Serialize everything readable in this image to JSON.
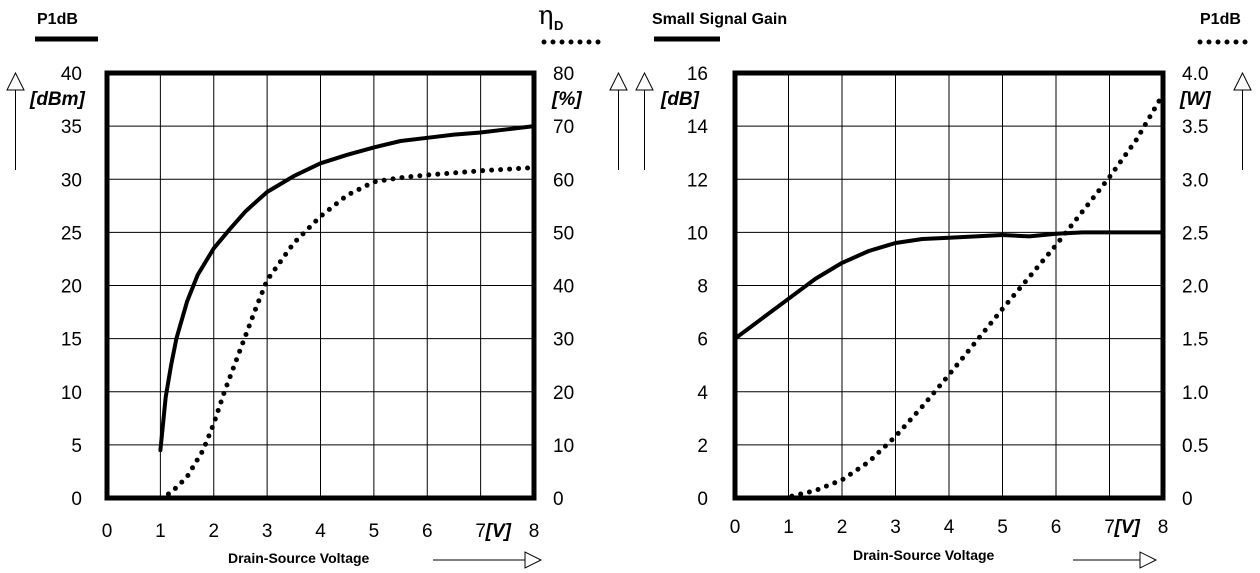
{
  "charts": [
    {
      "legend_left_title": "P1dB",
      "legend_right_symbol": "η",
      "legend_right_sub": "D",
      "left_unit": "[dBm]",
      "right_unit": "[%]",
      "x_unit": "[V]",
      "xlabel": "Drain-Source Voltage",
      "x_ticks": [
        "0",
        "1",
        "2",
        "3",
        "4",
        "5",
        "6",
        "7",
        "8"
      ],
      "y_left_ticks": [
        "0",
        "5",
        "10",
        "15",
        "20",
        "25",
        "30",
        "35",
        "40"
      ],
      "y_right_ticks": [
        "0",
        "10",
        "20",
        "30",
        "40",
        "50",
        "60",
        "70",
        "80"
      ]
    },
    {
      "legend_left_title": "Small Signal Gain",
      "legend_right_title": "P1dB",
      "left_unit": "[dB]",
      "right_unit": "[W]",
      "x_unit": "[V]",
      "xlabel": "Drain-Source Voltage",
      "x_ticks": [
        "0",
        "1",
        "2",
        "3",
        "4",
        "5",
        "6",
        "7",
        "8"
      ],
      "y_left_ticks": [
        "0",
        "2",
        "4",
        "6",
        "8",
        "10",
        "12",
        "14",
        "16"
      ],
      "y_right_ticks": [
        "0",
        "0.5",
        "1.0",
        "1.5",
        "2.0",
        "2.5",
        "3.0",
        "3.5",
        "4.0"
      ]
    }
  ],
  "chart_data": [
    {
      "type": "line",
      "xlim": [
        0,
        8
      ],
      "ylim_left": [
        0,
        40
      ],
      "ylim_right": [
        0,
        80
      ],
      "grid": true,
      "series": [
        {
          "name": "P1dB",
          "axis": "left",
          "style": "solid",
          "x": [
            1.0,
            1.1,
            1.2,
            1.3,
            1.5,
            1.7,
            2.0,
            2.3,
            2.6,
            3.0,
            3.5,
            4.0,
            4.5,
            5.0,
            5.5,
            6.0,
            6.5,
            7.0,
            7.5,
            8.0
          ],
          "y": [
            4.5,
            9.5,
            12.5,
            15.0,
            18.5,
            21.0,
            23.5,
            25.3,
            27.0,
            28.8,
            30.3,
            31.5,
            32.3,
            33.0,
            33.6,
            33.9,
            34.2,
            34.4,
            34.7,
            35.0
          ]
        },
        {
          "name": "η D",
          "axis": "right",
          "style": "dotted",
          "x": [
            1.0,
            1.2,
            1.5,
            1.8,
            2.0,
            2.2,
            2.5,
            2.8,
            3.0,
            3.5,
            4.0,
            4.5,
            5.0,
            5.5,
            6.0,
            6.5,
            7.0,
            7.5,
            8.0
          ],
          "y": [
            0,
            1,
            4,
            9,
            14,
            20,
            28,
            36,
            41,
            48,
            53,
            57,
            59.5,
            60.3,
            60.8,
            61.2,
            61.6,
            61.9,
            62.2
          ]
        }
      ]
    },
    {
      "type": "line",
      "xlim": [
        0,
        8
      ],
      "ylim_left": [
        0,
        16
      ],
      "ylim_right": [
        0,
        4.0
      ],
      "grid": true,
      "series": [
        {
          "name": "Small Signal Gain",
          "axis": "left",
          "style": "solid",
          "x": [
            0,
            0.5,
            1.0,
            1.5,
            2.0,
            2.5,
            3.0,
            3.5,
            4.0,
            4.5,
            5.0,
            5.5,
            6.0,
            6.5,
            7.0,
            7.5,
            8.0
          ],
          "y": [
            6.0,
            6.75,
            7.5,
            8.25,
            8.85,
            9.3,
            9.6,
            9.75,
            9.8,
            9.85,
            9.9,
            9.85,
            9.95,
            10.0,
            10.0,
            10.0,
            10.0
          ]
        },
        {
          "name": "P1dB",
          "axis": "right",
          "style": "dotted",
          "x": [
            0.9,
            1.0,
            1.5,
            2.0,
            2.5,
            3.0,
            3.5,
            4.0,
            4.5,
            5.0,
            5.5,
            6.0,
            6.5,
            7.0,
            7.5,
            8.0
          ],
          "y": [
            0,
            0.01,
            0.07,
            0.17,
            0.34,
            0.58,
            0.86,
            1.16,
            1.47,
            1.78,
            2.08,
            2.38,
            2.7,
            3.02,
            3.37,
            3.8
          ]
        }
      ]
    }
  ]
}
